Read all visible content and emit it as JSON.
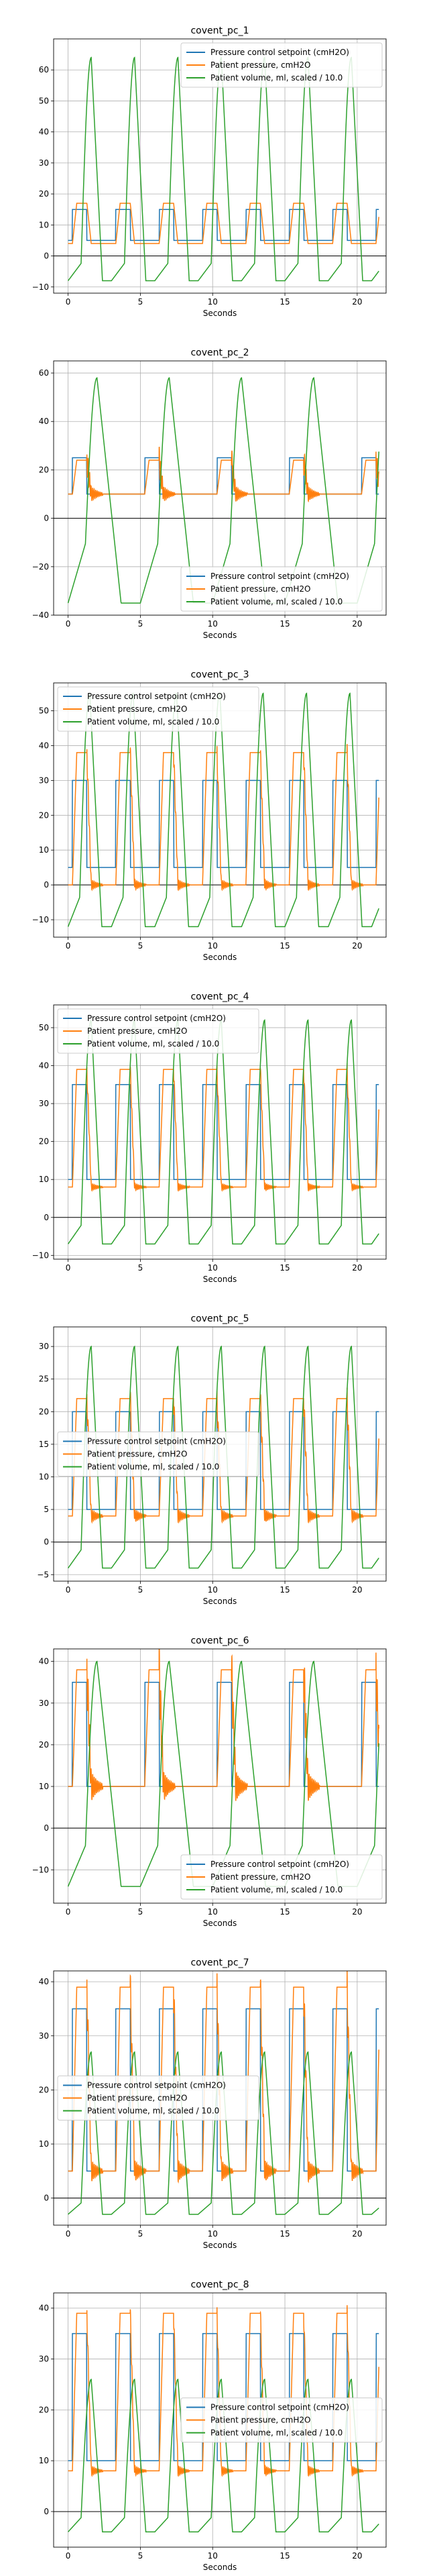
{
  "colors": {
    "setpoint": "#1f77b4",
    "pressure": "#ff7f0e",
    "volume": "#2ca02c",
    "grid": "#b0b0b0",
    "zero_line": "#000000"
  },
  "chart_data": [
    {
      "type": "line",
      "title": "covent_pc_1",
      "xlabel": "Seconds",
      "ylabel": "",
      "xlim": [
        -1,
        22
      ],
      "ylim": [
        -12,
        70
      ],
      "xticks": [
        0,
        5,
        10,
        15,
        20
      ],
      "yticks": [
        -10,
        0,
        10,
        20,
        30,
        40,
        50,
        60
      ],
      "grid": true,
      "legend_position": "top-right",
      "zero_line": true,
      "period": 3.0,
      "sp_low": 5,
      "sp_high": 15,
      "p_peak": 17,
      "p_base": 4,
      "p_noise": 0,
      "v_peak": 64,
      "v_min": -8,
      "v_delay": 0.9,
      "v_rise": 0.7,
      "series": [
        {
          "name": "Pressure control setpoint (cmH2O)"
        },
        {
          "name": "Patient pressure, cmH2O"
        },
        {
          "name": "Patient volume, ml, scaled / 10.0"
        }
      ]
    },
    {
      "type": "line",
      "title": "covent_pc_2",
      "xlabel": "Seconds",
      "ylabel": "",
      "xlim": [
        -1,
        22
      ],
      "ylim": [
        -40,
        65
      ],
      "xticks": [
        0,
        5,
        10,
        15,
        20
      ],
      "yticks": [
        -40,
        -20,
        0,
        20,
        40,
        60
      ],
      "grid": true,
      "legend_position": "bottom-right",
      "zero_line": true,
      "period": 5.0,
      "sp_low": 10,
      "sp_high": 25,
      "p_peak": 24,
      "p_base": 10,
      "p_noise": 6,
      "v_peak": 58,
      "v_min": -35,
      "v_delay": 1.2,
      "v_rise": 0.8,
      "series": [
        {
          "name": "Pressure control setpoint (cmH2O)"
        },
        {
          "name": "Patient pressure, cmH2O"
        },
        {
          "name": "Patient volume, ml, scaled / 10.0"
        }
      ]
    },
    {
      "type": "line",
      "title": "covent_pc_3",
      "xlabel": "Seconds",
      "ylabel": "",
      "xlim": [
        -1,
        22
      ],
      "ylim": [
        -15,
        58
      ],
      "xticks": [
        0,
        5,
        10,
        15,
        20
      ],
      "yticks": [
        -10,
        0,
        10,
        20,
        30,
        40,
        50
      ],
      "grid": true,
      "legend_position": "top-left",
      "zero_line": true,
      "period": 3.0,
      "sp_low": 5,
      "sp_high": 30,
      "p_peak": 38,
      "p_base": 0,
      "p_noise": 3,
      "v_peak": 55,
      "v_min": -12,
      "v_delay": 0.8,
      "v_rise": 0.7,
      "series": [
        {
          "name": "Pressure control setpoint (cmH2O)"
        },
        {
          "name": "Patient pressure, cmH2O"
        },
        {
          "name": "Patient volume, ml, scaled / 10.0"
        }
      ]
    },
    {
      "type": "line",
      "title": "covent_pc_4",
      "xlabel": "Seconds",
      "ylabel": "",
      "xlim": [
        -1,
        22
      ],
      "ylim": [
        -11,
        56
      ],
      "xticks": [
        0,
        5,
        10,
        15,
        20
      ],
      "yticks": [
        -10,
        0,
        10,
        20,
        30,
        40,
        50
      ],
      "grid": true,
      "legend_position": "top-left",
      "zero_line": true,
      "period": 3.0,
      "sp_low": 10,
      "sp_high": 35,
      "p_peak": 39,
      "p_base": 8,
      "p_noise": 2,
      "v_peak": 52,
      "v_min": -7,
      "v_delay": 0.9,
      "v_rise": 0.7,
      "series": [
        {
          "name": "Pressure control setpoint (cmH2O)"
        },
        {
          "name": "Patient pressure, cmH2O"
        },
        {
          "name": "Patient volume, ml, scaled / 10.0"
        }
      ]
    },
    {
      "type": "line",
      "title": "covent_pc_5",
      "xlabel": "Seconds",
      "ylabel": "",
      "xlim": [
        -1,
        22
      ],
      "ylim": [
        -6,
        33
      ],
      "xticks": [
        0,
        5,
        10,
        15,
        20
      ],
      "yticks": [
        -5,
        0,
        5,
        10,
        15,
        20,
        25,
        30
      ],
      "grid": true,
      "legend_position": "center-left",
      "zero_line": true,
      "period": 3.0,
      "sp_low": 5,
      "sp_high": 20,
      "p_peak": 22,
      "p_base": 4,
      "p_noise": 2,
      "v_peak": 30,
      "v_min": -4,
      "v_delay": 0.9,
      "v_rise": 0.7,
      "series": [
        {
          "name": "Pressure control setpoint (cmH2O)"
        },
        {
          "name": "Patient pressure, cmH2O"
        },
        {
          "name": "Patient volume, ml, scaled / 10.0"
        }
      ]
    },
    {
      "type": "line",
      "title": "covent_pc_6",
      "xlabel": "Seconds",
      "ylabel": "",
      "xlim": [
        -1,
        22
      ],
      "ylim": [
        -18,
        43
      ],
      "xticks": [
        0,
        5,
        10,
        15,
        20
      ],
      "yticks": [
        -10,
        0,
        10,
        20,
        30,
        40
      ],
      "grid": true,
      "legend_position": "bottom-right",
      "zero_line": true,
      "period": 5.0,
      "sp_low": 10,
      "sp_high": 35,
      "p_peak": 38,
      "p_base": 10,
      "p_noise": 7,
      "v_peak": 40,
      "v_min": -14,
      "v_delay": 1.2,
      "v_rise": 0.8,
      "series": [
        {
          "name": "Pressure control setpoint (cmH2O)"
        },
        {
          "name": "Patient pressure, cmH2O"
        },
        {
          "name": "Patient volume, ml, scaled / 10.0"
        }
      ]
    },
    {
      "type": "line",
      "title": "covent_pc_7",
      "xlabel": "Seconds",
      "ylabel": "",
      "xlim": [
        -1,
        22
      ],
      "ylim": [
        -5,
        42
      ],
      "xticks": [
        0,
        5,
        10,
        15,
        20
      ],
      "yticks": [
        0,
        10,
        20,
        30,
        40
      ],
      "grid": true,
      "legend_position": "center-left",
      "zero_line": true,
      "period": 3.0,
      "sp_low": 5,
      "sp_high": 35,
      "p_peak": 39,
      "p_base": 5,
      "p_noise": 4,
      "v_peak": 27,
      "v_min": -3,
      "v_delay": 0.9,
      "v_rise": 0.7,
      "series": [
        {
          "name": "Pressure control setpoint (cmH2O)"
        },
        {
          "name": "Patient pressure, cmH2O"
        },
        {
          "name": "Patient volume, ml, scaled / 10.0"
        }
      ]
    },
    {
      "type": "line",
      "title": "covent_pc_8",
      "xlabel": "Seconds",
      "ylabel": "",
      "xlim": [
        -1,
        22
      ],
      "ylim": [
        -7,
        43
      ],
      "xticks": [
        0,
        5,
        10,
        15,
        20
      ],
      "yticks": [
        0,
        10,
        20,
        30,
        40
      ],
      "grid": true,
      "legend_position": "center-right",
      "zero_line": true,
      "period": 3.0,
      "sp_low": 10,
      "sp_high": 35,
      "p_peak": 39,
      "p_base": 8,
      "p_noise": 2,
      "v_peak": 26,
      "v_min": -4,
      "v_delay": 0.9,
      "v_rise": 0.7,
      "series": [
        {
          "name": "Pressure control setpoint (cmH2O)"
        },
        {
          "name": "Patient pressure, cmH2O"
        },
        {
          "name": "Patient volume, ml, scaled / 10.0"
        }
      ]
    }
  ]
}
